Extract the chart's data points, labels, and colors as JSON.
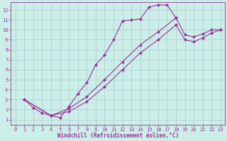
{
  "xlabel": "Windchill (Refroidissement éolien,°C)",
  "bg_color": "#cceee8",
  "line_color": "#993399",
  "grid_color": "#aacccc",
  "xlim_min": -0.5,
  "xlim_max": 23.5,
  "ylim_min": 0.5,
  "ylim_max": 12.8,
  "xticks": [
    0,
    1,
    2,
    3,
    4,
    5,
    6,
    7,
    8,
    9,
    10,
    11,
    12,
    13,
    14,
    15,
    16,
    17,
    18,
    19,
    20,
    21,
    22,
    23
  ],
  "yticks": [
    1,
    2,
    3,
    4,
    5,
    6,
    7,
    8,
    9,
    10,
    11,
    12
  ],
  "upper_x": [
    1,
    2,
    3,
    4,
    5,
    6,
    7,
    8,
    9,
    10,
    11,
    12,
    13,
    14,
    15,
    16,
    17,
    18
  ],
  "upper_y": [
    3.0,
    2.2,
    1.65,
    1.4,
    1.2,
    2.3,
    3.6,
    4.7,
    6.5,
    7.5,
    9.0,
    10.9,
    11.0,
    11.1,
    12.3,
    12.5,
    12.5,
    11.2
  ],
  "diag1_x": [
    1,
    4,
    6,
    8,
    10,
    12,
    14,
    16,
    18,
    19,
    20,
    21,
    22,
    23
  ],
  "diag1_y": [
    3.0,
    1.4,
    2.1,
    3.3,
    5.0,
    6.8,
    8.5,
    9.8,
    11.2,
    9.5,
    9.3,
    9.6,
    10.0,
    10.0
  ],
  "diag2_x": [
    1,
    4,
    6,
    8,
    10,
    12,
    14,
    16,
    18,
    19,
    20,
    21,
    22,
    23
  ],
  "diag2_y": [
    3.0,
    1.4,
    1.8,
    2.8,
    4.3,
    6.0,
    7.7,
    9.0,
    10.5,
    9.0,
    8.8,
    9.2,
    9.7,
    10.0
  ]
}
